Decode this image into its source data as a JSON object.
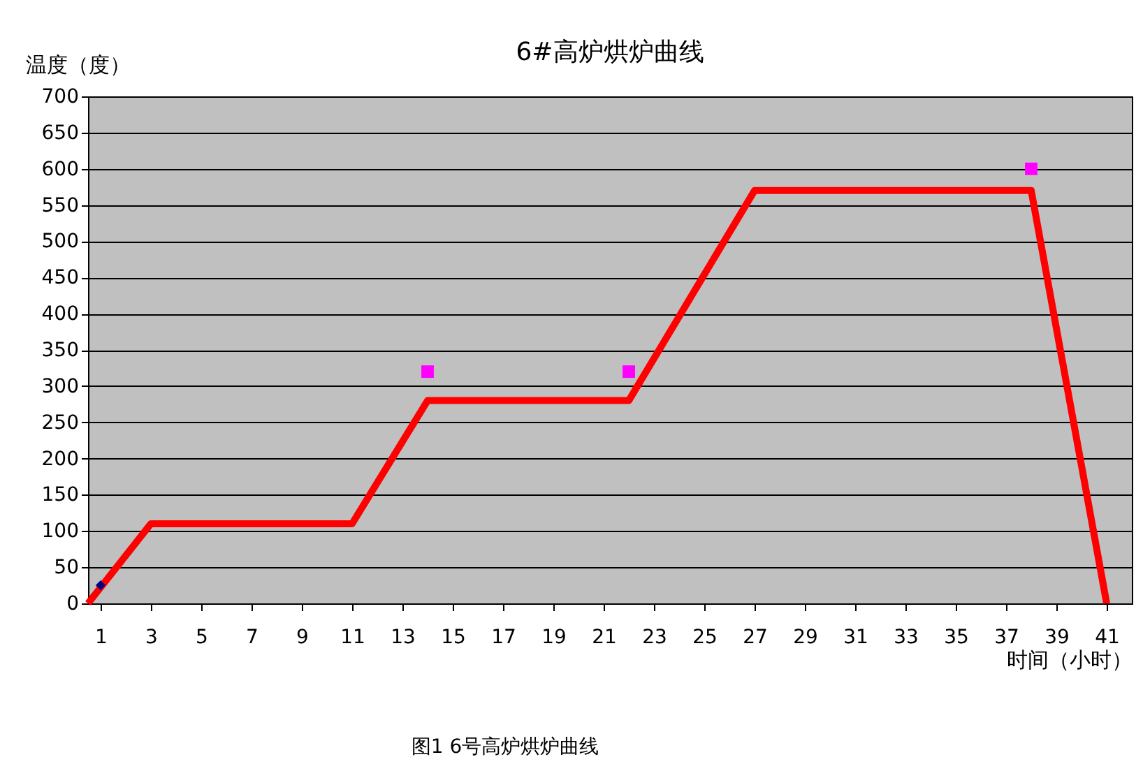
{
  "chart_data": {
    "type": "line",
    "title": "6#高炉烘炉曲线",
    "xlabel": "时间（小时）",
    "ylabel": "温度（度）",
    "annotations": [
      "图1   6号高炉烘炉曲线"
    ],
    "series": [
      {
        "color": "#ff0000",
        "x": [
          0.5,
          3,
          11,
          14,
          22,
          27,
          38,
          41
        ],
        "values": [
          0,
          110,
          110,
          280,
          280,
          570,
          570,
          0
        ],
        "marker": "none"
      },
      {
        "type": "scatter",
        "color": "#000080",
        "x": [
          1
        ],
        "values": [
          25
        ],
        "marker": "diamond"
      },
      {
        "type": "scatter",
        "color": "#ff00ff",
        "x": [
          14,
          22,
          38
        ],
        "values": [
          320,
          320,
          600
        ],
        "marker": "square"
      }
    ],
    "xlim": [
      0.5,
      42
    ],
    "ylim": [
      0,
      700
    ],
    "xticks": [
      1,
      3,
      5,
      7,
      9,
      11,
      13,
      15,
      17,
      19,
      21,
      23,
      25,
      27,
      29,
      31,
      33,
      35,
      37,
      39,
      41
    ],
    "yticks": [
      0,
      50,
      100,
      150,
      200,
      250,
      300,
      350,
      400,
      450,
      500,
      550,
      600,
      650,
      700
    ],
    "grid": "y"
  }
}
